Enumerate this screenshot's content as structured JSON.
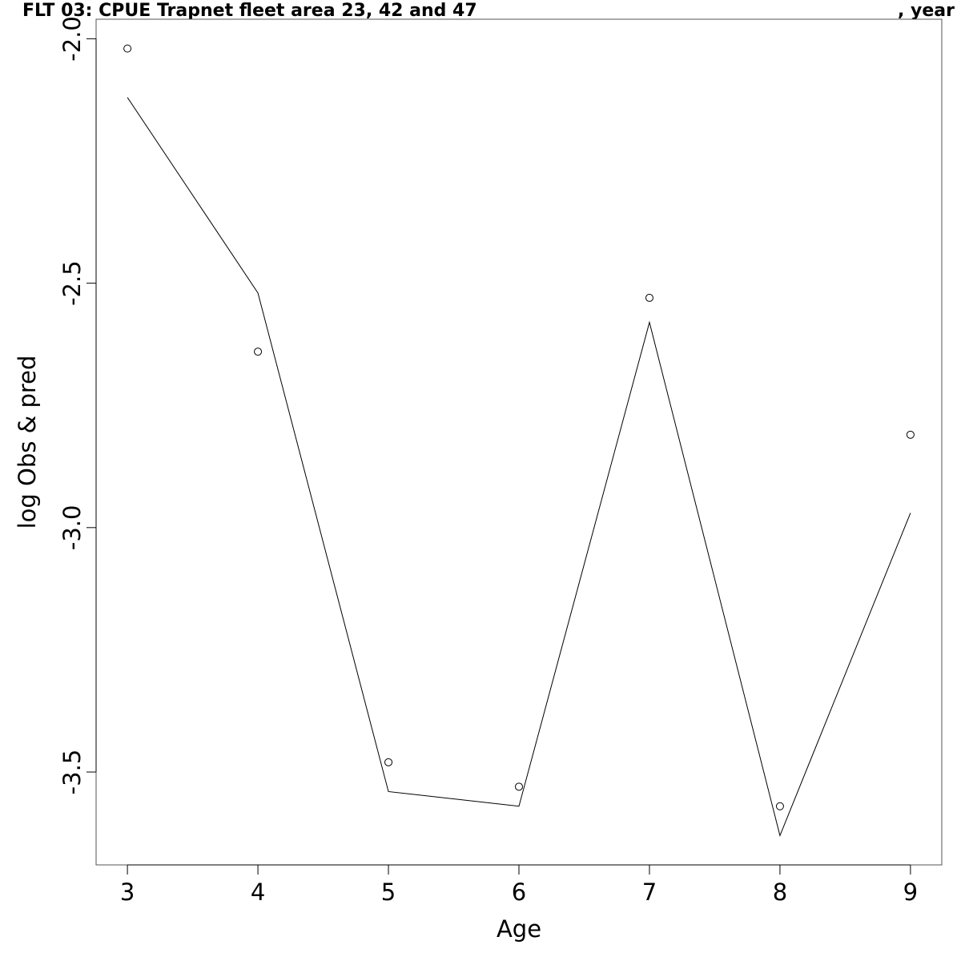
{
  "chart_data": {
    "type": "line",
    "title_left": "FLT 03: CPUE Trapnet fleet area 23, 42 and 47",
    "title_right": ", year",
    "xlabel": "Age",
    "ylabel": "log Obs & pred",
    "xlim": [
      2.76,
      9.24
    ],
    "ylim": [
      -3.69,
      -1.96
    ],
    "x_ticks": [
      3,
      4,
      5,
      6,
      7,
      8,
      9
    ],
    "x_tick_labels": [
      "3",
      "4",
      "5",
      "6",
      "7",
      "8",
      "9"
    ],
    "y_ticks": [
      -2.0,
      -2.5,
      -3.0,
      -3.5
    ],
    "y_tick_labels": [
      "-2.0",
      "-2.5",
      "-3.0",
      "-3.5"
    ],
    "grid": false,
    "legend": "none",
    "series": [
      {
        "kind": "points",
        "marker": "open-circle",
        "x": [
          3,
          4,
          5,
          6,
          7,
          8,
          9
        ],
        "y": [
          -2.02,
          -2.64,
          -3.48,
          -3.53,
          -2.53,
          -3.57,
          -2.81
        ]
      },
      {
        "kind": "line",
        "x": [
          3,
          4,
          5,
          6,
          7,
          8,
          9
        ],
        "y": [
          -2.12,
          -2.52,
          -3.54,
          -3.57,
          -2.58,
          -3.63,
          -2.97
        ]
      }
    ],
    "colors": {
      "points": "#000000",
      "line": "#000000"
    }
  }
}
